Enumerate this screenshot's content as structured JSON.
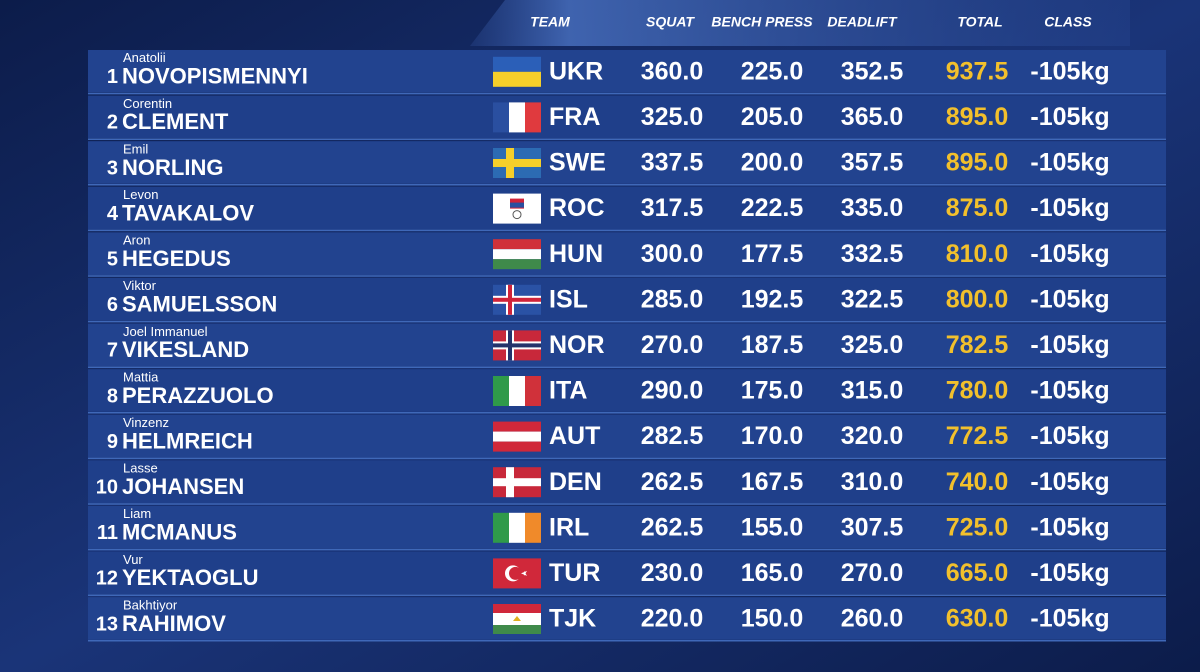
{
  "header": {
    "team": "TEAM",
    "squat": "SQUAT",
    "bench_press": "BENCH PRESS",
    "deadlift": "DEADLIFT",
    "total": "TOTAL",
    "class": "CLASS"
  },
  "rows": [
    {
      "rank": "1",
      "first": "Anatolii",
      "last": "NOVOPISMENNYI",
      "team": "UKR",
      "squat": "360.0",
      "bench_press": "225.0",
      "deadlift": "352.5",
      "total": "937.5",
      "class": "-105kg"
    },
    {
      "rank": "2",
      "first": "Corentin",
      "last": "CLEMENT",
      "team": "FRA",
      "squat": "325.0",
      "bench_press": "205.0",
      "deadlift": "365.0",
      "total": "895.0",
      "class": "-105kg"
    },
    {
      "rank": "3",
      "first": "Emil",
      "last": "NORLING",
      "team": "SWE",
      "squat": "337.5",
      "bench_press": "200.0",
      "deadlift": "357.5",
      "total": "895.0",
      "class": "-105kg"
    },
    {
      "rank": "4",
      "first": "Levon",
      "last": "TAVAKALOV",
      "team": "ROC",
      "squat": "317.5",
      "bench_press": "222.5",
      "deadlift": "335.0",
      "total": "875.0",
      "class": "-105kg"
    },
    {
      "rank": "5",
      "first": "Aron",
      "last": "HEGEDUS",
      "team": "HUN",
      "squat": "300.0",
      "bench_press": "177.5",
      "deadlift": "332.5",
      "total": "810.0",
      "class": "-105kg"
    },
    {
      "rank": "6",
      "first": "Viktor",
      "last": "SAMUELSSON",
      "team": "ISL",
      "squat": "285.0",
      "bench_press": "192.5",
      "deadlift": "322.5",
      "total": "800.0",
      "class": "-105kg"
    },
    {
      "rank": "7",
      "first": "Joel Immanuel",
      "last": "VIKESLAND",
      "team": "NOR",
      "squat": "270.0",
      "bench_press": "187.5",
      "deadlift": "325.0",
      "total": "782.5",
      "class": "-105kg"
    },
    {
      "rank": "8",
      "first": "Mattia",
      "last": "PERAZZUOLO",
      "team": "ITA",
      "squat": "290.0",
      "bench_press": "175.0",
      "deadlift": "315.0",
      "total": "780.0",
      "class": "-105kg"
    },
    {
      "rank": "9",
      "first": "Vinzenz",
      "last": "HELMREICH",
      "team": "AUT",
      "squat": "282.5",
      "bench_press": "170.0",
      "deadlift": "320.0",
      "total": "772.5",
      "class": "-105kg"
    },
    {
      "rank": "10",
      "first": "Lasse",
      "last": "JOHANSEN",
      "team": "DEN",
      "squat": "262.5",
      "bench_press": "167.5",
      "deadlift": "310.0",
      "total": "740.0",
      "class": "-105kg"
    },
    {
      "rank": "11",
      "first": "Liam",
      "last": "MCMANUS",
      "team": "IRL",
      "squat": "262.5",
      "bench_press": "155.0",
      "deadlift": "307.5",
      "total": "725.0",
      "class": "-105kg"
    },
    {
      "rank": "12",
      "first": "Vur",
      "last": "YEKTAOGLU",
      "team": "TUR",
      "squat": "230.0",
      "bench_press": "165.0",
      "deadlift": "270.0",
      "total": "665.0",
      "class": "-105kg"
    },
    {
      "rank": "13",
      "first": "Bakhtiyor",
      "last": "RAHIMOV",
      "team": "TJK",
      "squat": "220.0",
      "bench_press": "150.0",
      "deadlift": "260.0",
      "total": "630.0",
      "class": "-105kg"
    }
  ]
}
